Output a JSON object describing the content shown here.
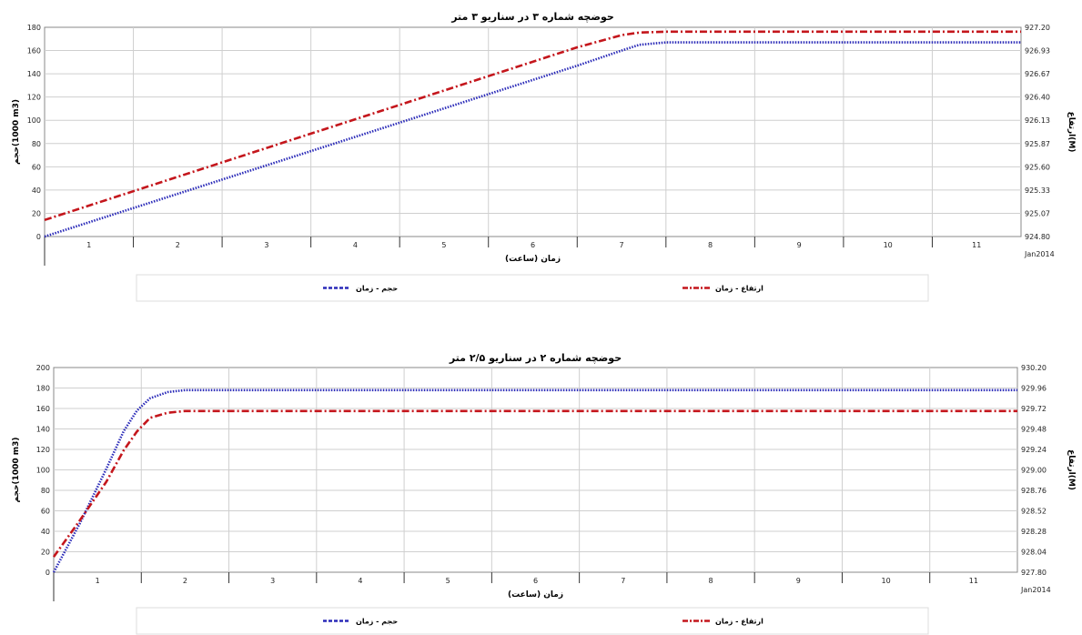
{
  "chart_data": [
    {
      "type": "line",
      "title": "حوضچه شماره ۳ در سناریو ۳ متر",
      "xlabel": "زمان (ساعت)",
      "ylabel": "حجم(1000 m3)",
      "y2label": "ارتفاع(M)",
      "x_ticks": [
        "1",
        "2",
        "3",
        "4",
        "5",
        "6",
        "7",
        "8",
        "9",
        "10",
        "11"
      ],
      "x_corner_label": "Jan2014",
      "xlim": [
        0.5,
        11.5
      ],
      "ylim": [
        0,
        180
      ],
      "y_ticks": [
        "0",
        "20",
        "40",
        "60",
        "80",
        "100",
        "120",
        "140",
        "160",
        "180"
      ],
      "y2lim": [
        924.8,
        927.2
      ],
      "y2_ticks": [
        "924.80",
        "925.07",
        "925.33",
        "925.60",
        "925.87",
        "926.13",
        "926.40",
        "926.67",
        "926.93",
        "927.20"
      ],
      "grid": true,
      "legend_position": "bottom",
      "series": [
        {
          "name": "حجم - زمان",
          "color": "#2a2ab8",
          "style": "dotted",
          "axis": "left",
          "x": [
            0.5,
            1.5,
            2.5,
            3.5,
            4.5,
            5.5,
            6.5,
            7.0,
            7.2,
            7.5,
            8.5,
            9.5,
            10.5,
            11.5
          ],
          "y": [
            0,
            24.5,
            49,
            73.5,
            98,
            122.5,
            147,
            160,
            165,
            167,
            167,
            167,
            167,
            167
          ]
        },
        {
          "name": "ارتفاع - زمان",
          "color": "#c4161c",
          "style": "dashdot",
          "axis": "right",
          "x": [
            0.5,
            1.5,
            2.5,
            3.5,
            4.5,
            5.5,
            6.5,
            7.0,
            7.2,
            7.5,
            8.5,
            9.5,
            10.5,
            11.5
          ],
          "y": [
            924.99,
            925.32,
            925.65,
            925.98,
            926.31,
            926.64,
            926.97,
            927.11,
            927.14,
            927.15,
            927.15,
            927.15,
            927.15,
            927.15
          ]
        }
      ]
    },
    {
      "type": "line",
      "title": "حوضچه شماره ۲ در سناریو ۲/۵ متر",
      "xlabel": "زمان (ساعت)",
      "ylabel": "حجم(1000 m3)",
      "y2label": "ارتفاع(M)",
      "x_ticks": [
        "1",
        "2",
        "3",
        "4",
        "5",
        "6",
        "7",
        "8",
        "9",
        "10",
        "11"
      ],
      "x_corner_label": "Jan2014",
      "xlim": [
        0.5,
        11.5
      ],
      "ylim": [
        0,
        200
      ],
      "y_ticks": [
        "0",
        "20",
        "40",
        "60",
        "80",
        "100",
        "120",
        "140",
        "160",
        "180",
        "200"
      ],
      "y2lim": [
        927.8,
        930.2
      ],
      "y2_ticks": [
        "927.80",
        "928.04",
        "928.28",
        "928.52",
        "928.76",
        "929.00",
        "929.24",
        "929.48",
        "929.72",
        "929.96",
        "930.20"
      ],
      "grid": true,
      "legend_position": "bottom",
      "series": [
        {
          "name": "حجم - زمان",
          "color": "#2a2ab8",
          "style": "dotted",
          "axis": "left",
          "x": [
            0.5,
            0.8,
            1.1,
            1.3,
            1.45,
            1.6,
            1.8,
            2.0,
            2.5,
            11.5
          ],
          "y": [
            0,
            48,
            101,
            138,
            158,
            170,
            176,
            178,
            178,
            178
          ]
        },
        {
          "name": "ارتفاع - زمان",
          "color": "#c4161c",
          "style": "dashdot",
          "axis": "right",
          "x": [
            0.5,
            0.8,
            1.1,
            1.3,
            1.45,
            1.6,
            1.8,
            2.0,
            2.5,
            11.5
          ],
          "y": [
            927.98,
            928.41,
            928.86,
            929.23,
            929.45,
            929.61,
            929.67,
            929.69,
            929.69,
            929.69
          ]
        }
      ]
    }
  ]
}
